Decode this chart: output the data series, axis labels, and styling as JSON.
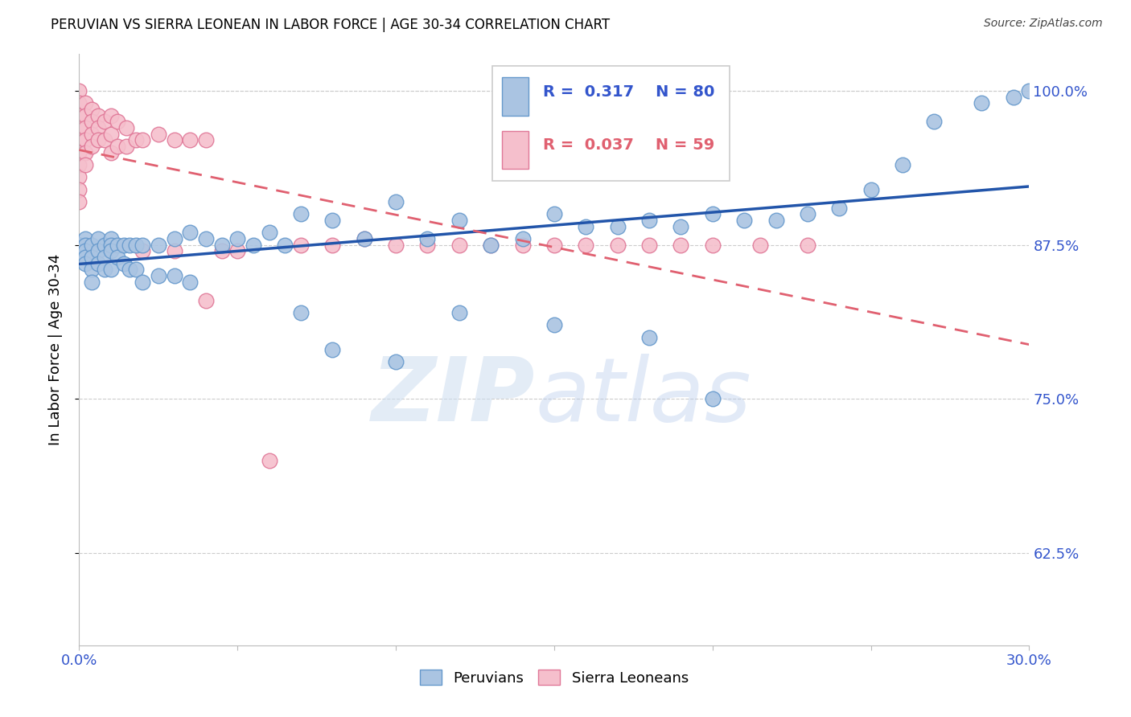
{
  "title": "PERUVIAN VS SIERRA LEONEAN IN LABOR FORCE | AGE 30-34 CORRELATION CHART",
  "source": "Source: ZipAtlas.com",
  "ylabel": "In Labor Force | Age 30-34",
  "xlim": [
    0.0,
    0.3
  ],
  "ylim": [
    0.55,
    1.03
  ],
  "yticks": [
    0.625,
    0.75,
    0.875,
    1.0
  ],
  "ytick_labels": [
    "62.5%",
    "75.0%",
    "87.5%",
    "100.0%"
  ],
  "xtick_positions": [
    0.0,
    0.05,
    0.1,
    0.15,
    0.2,
    0.25,
    0.3
  ],
  "xtick_labels": [
    "0.0%",
    "",
    "",
    "",
    "",
    "",
    "30.0%"
  ],
  "peruvian_color": "#aac4e2",
  "sierraleone_color": "#f5bfcc",
  "peruvian_edge": "#6699cc",
  "sierraleone_edge": "#e07898",
  "line_peruvian_color": "#2255aa",
  "line_sl_color": "#e06070",
  "grid_color": "#cccccc",
  "axis_color": "#bbbbbb",
  "tick_label_color": "#3355cc",
  "title_fontsize": 12,
  "source_fontsize": 10,
  "tick_fontsize": 13,
  "ylabel_fontsize": 13,
  "legend_fontsize": 14
}
